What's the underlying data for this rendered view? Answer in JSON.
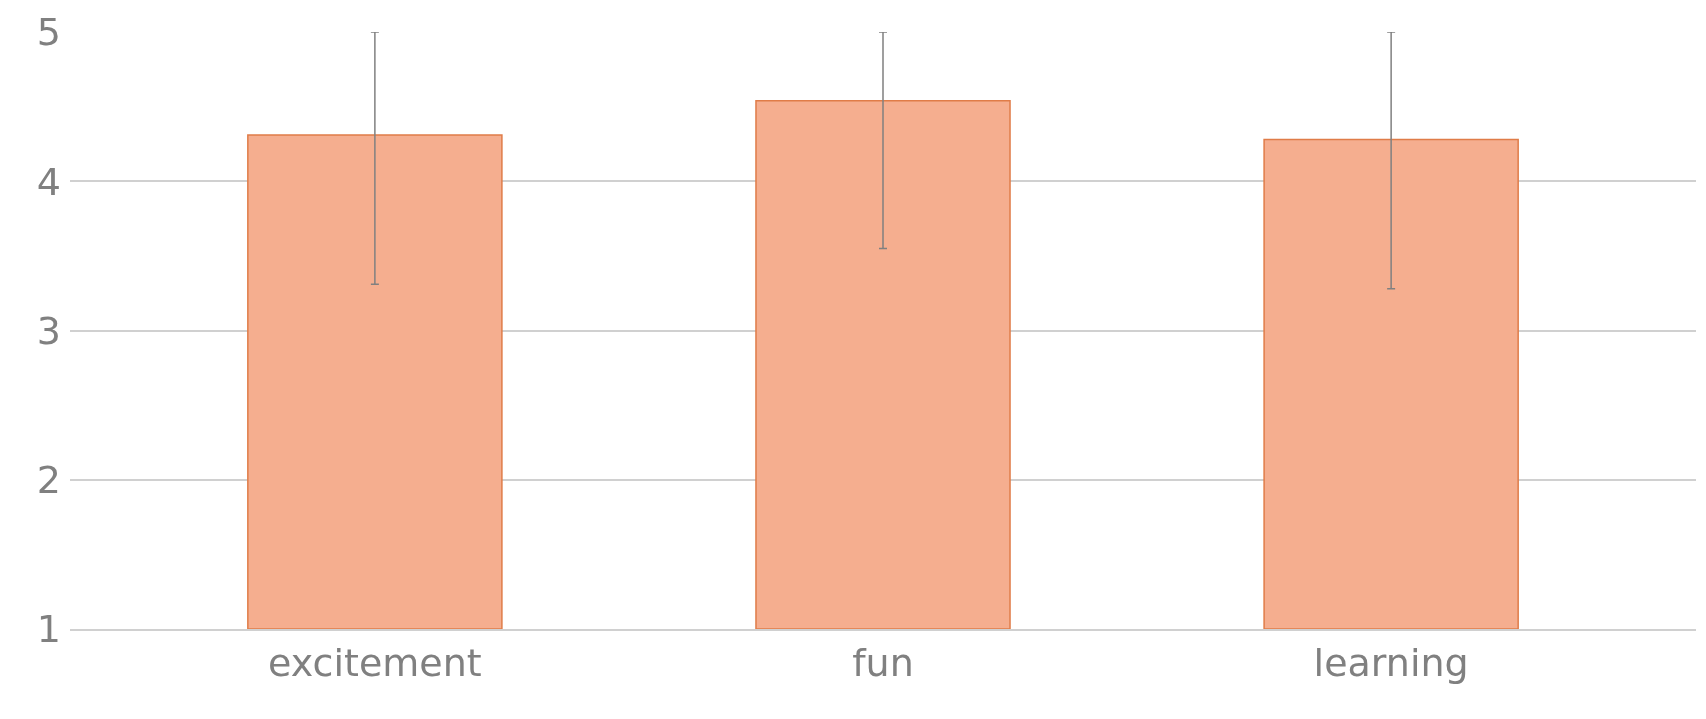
{
  "chart_data": {
    "type": "bar",
    "categories": [
      "excitement",
      "fun",
      "learning"
    ],
    "values": [
      4.31,
      4.54,
      4.28
    ],
    "errors": [
      [
        3.31,
        5
      ],
      [
        3.55,
        5
      ],
      [
        3.28,
        5
      ]
    ],
    "color": "#f5ae8f",
    "ylim": [
      1,
      5
    ],
    "yticks": [
      1,
      2,
      3,
      4,
      5
    ],
    "grid": "y",
    "legend": false
  }
}
